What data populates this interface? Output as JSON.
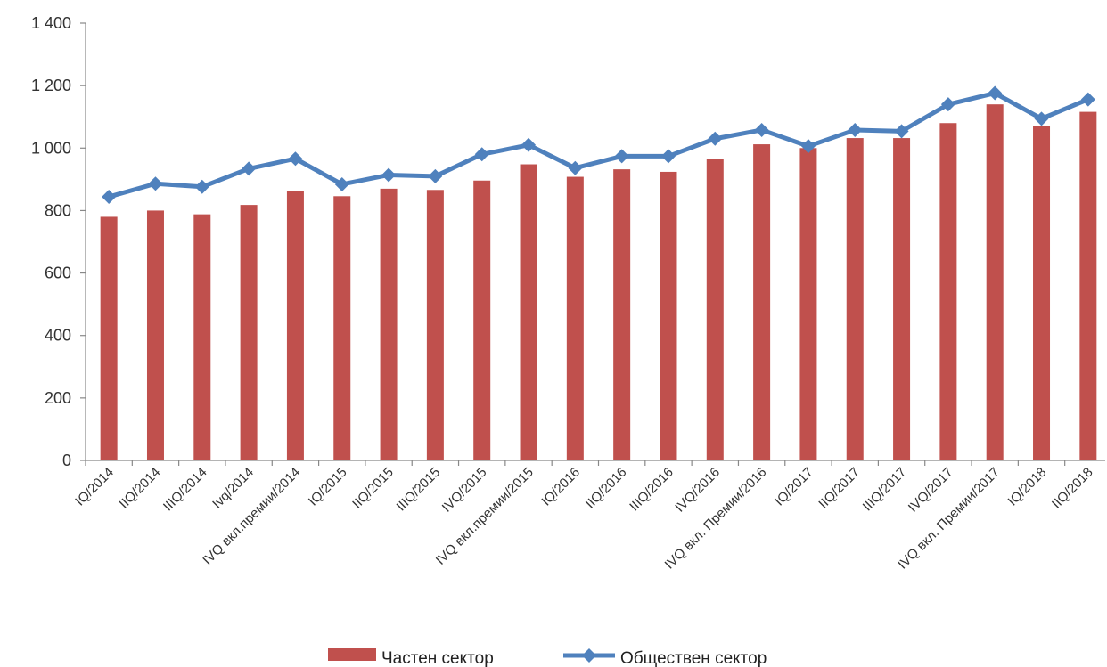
{
  "chart_data": {
    "type": "bar",
    "categories": [
      "IQ/2014",
      "IIQ/2014",
      "IIIQ/2014",
      "Ivq/2014",
      "IVQ вкл.премии/2014",
      "IQ/2015",
      "IIQ/2015",
      "IIIQ/2015",
      "IVQ/2015",
      "IVQ вкл.премии/2015",
      "IQ/2016",
      "IIQ/2016",
      "IIIQ/2016",
      "IVQ/2016",
      "IVQ вкл. Премии/2016",
      "IQ/2017",
      "IIQ/2017",
      "IIIQ/2017",
      "IVQ/2017",
      "IVQ вкл. Премии/2017",
      "IQ/2018",
      "IIQ/2018"
    ],
    "series": [
      {
        "name": "Частен сектор",
        "kind": "bar",
        "color": "#c0504d",
        "values": [
          780,
          800,
          788,
          818,
          862,
          846,
          870,
          866,
          896,
          948,
          908,
          932,
          924,
          966,
          1012,
          1000,
          1032,
          1032,
          1080,
          1140,
          1072,
          1116
        ]
      },
      {
        "name": "Обществен сектор",
        "kind": "line",
        "color": "#4f81bd",
        "values": [
          844,
          886,
          876,
          934,
          966,
          884,
          914,
          910,
          980,
          1010,
          936,
          974,
          974,
          1030,
          1058,
          1006,
          1058,
          1054,
          1140,
          1176,
          1094,
          1156
        ]
      }
    ],
    "yticks": [
      "0",
      "200",
      "400",
      "600",
      "800",
      "1 000",
      "1 200",
      "1 400"
    ],
    "ylim": [
      0,
      1400
    ],
    "legend_position": "bottom",
    "grid": false
  }
}
